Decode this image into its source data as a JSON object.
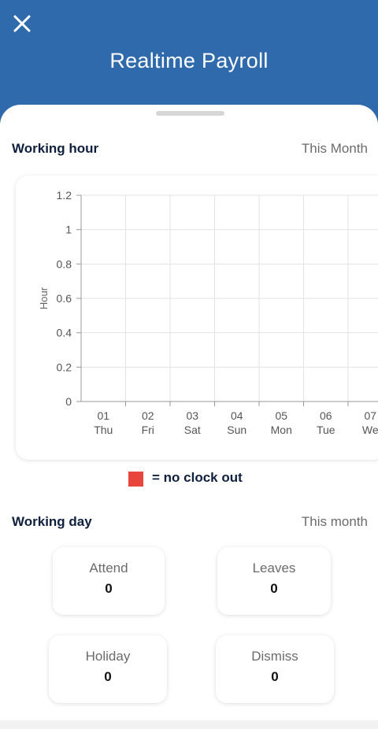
{
  "header": {
    "title": "Realtime Payroll",
    "close_icon": "close-icon"
  },
  "working_hour": {
    "title": "Working hour",
    "period": "This Month"
  },
  "chart_data": {
    "type": "bar",
    "ylabel": "Hour",
    "xlabel": "",
    "ylim": [
      0,
      1.2
    ],
    "y_ticks": [
      "0",
      "0.2",
      "0.4",
      "0.6",
      "0.8",
      "1",
      "1.2"
    ],
    "categories": [
      "01 Thu",
      "02 Fri",
      "03 Sat",
      "04 Sun",
      "05 Mon",
      "06 Tue",
      "07 We"
    ],
    "x_day": [
      "01",
      "02",
      "03",
      "04",
      "05",
      "06",
      "07"
    ],
    "x_weekday": [
      "Thu",
      "Fri",
      "Sat",
      "Sun",
      "Mon",
      "Tue",
      "We"
    ],
    "values": [
      0,
      0,
      0,
      0,
      0,
      0,
      0
    ],
    "grid": true
  },
  "legend": {
    "color": "#e8453c",
    "text": "= no clock out"
  },
  "working_day": {
    "title": "Working day",
    "period": "This month",
    "stats": [
      {
        "label": "Attend",
        "value": "0"
      },
      {
        "label": "Leaves",
        "value": "0"
      },
      {
        "label": "Holiday",
        "value": "0"
      },
      {
        "label": "Dismiss",
        "value": "0"
      }
    ]
  },
  "colors": {
    "header_bg": "#2f6aad",
    "accent_red": "#e8453c"
  }
}
